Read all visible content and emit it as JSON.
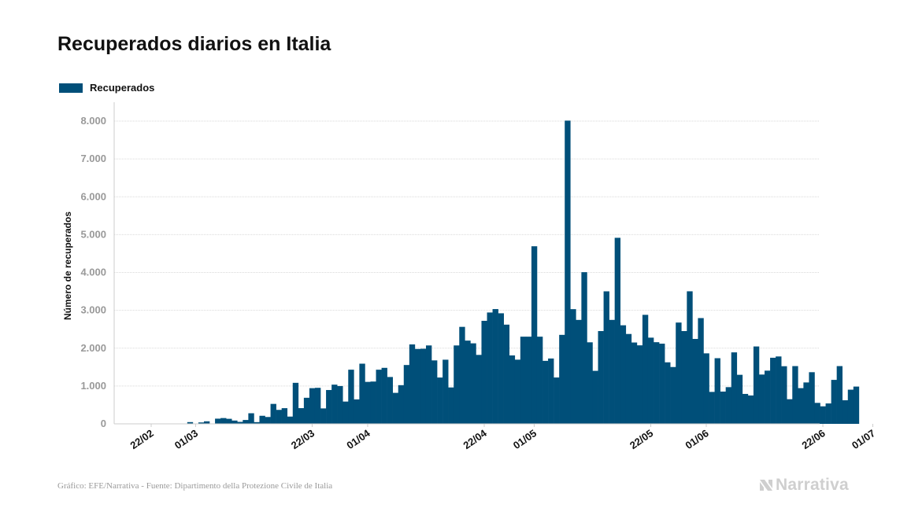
{
  "title": "Recuperados diarios en Italia",
  "source": "Gráfico: EFE/Narrativa - Fuente: Dipartimento della Protezione Civile de Italia",
  "brand": {
    "name": "Narrativa",
    "icon": "narrativa-logo-icon"
  },
  "colors": {
    "bar": "#004f79",
    "grid": "#d9d9d9",
    "tick_text": "#999999",
    "brand": "#cfcfcf"
  },
  "chart_data": {
    "type": "bar",
    "title": "Recuperados diarios en Italia",
    "ylabel": "Número de recuperados",
    "xlabel": "",
    "legend": {
      "position": "top-left",
      "entries": [
        "Recuperados"
      ]
    },
    "grid": true,
    "ylim": [
      0,
      8500
    ],
    "yticks": [
      0,
      1000,
      2000,
      3000,
      4000,
      5000,
      6000,
      7000,
      8000
    ],
    "ytick_labels": [
      "0",
      "1.000",
      "2.000",
      "3.000",
      "4.000",
      "5.000",
      "6.000",
      "7.000",
      "8.000"
    ],
    "x_start": "2020-02-22",
    "x_end": "2020-06-26",
    "xticks": [
      "22/02",
      "01/03",
      "22/03",
      "01/04",
      "22/04",
      "01/05",
      "22/05",
      "01/06",
      "22/06",
      "01/07"
    ],
    "xtick_dates": [
      "2020-02-22",
      "2020-03-01",
      "2020-03-22",
      "2020-04-01",
      "2020-04-22",
      "2020-05-01",
      "2020-05-22",
      "2020-06-01",
      "2020-06-22",
      "2020-07-01"
    ],
    "series": [
      {
        "name": "Recuperados",
        "color": "#004f79",
        "values": [
          0,
          0,
          0,
          0,
          0,
          0,
          0,
          46,
          0,
          37,
          67,
          10,
          137,
          153,
          133,
          87,
          52,
          102,
          280,
          45,
          213,
          181,
          527,
          369,
          414,
          192,
          1084,
          415,
          689,
          943,
          952,
          408,
          894,
          1036,
          999,
          589,
          1431,
          646,
          1590,
          1109,
          1118,
          1431,
          1480,
          1238,
          819,
          1022,
          1555,
          2099,
          1979,
          1985,
          2072,
          1677,
          1224,
          1695,
          962,
          2072,
          2563,
          2200,
          2128,
          1822,
          2723,
          2943,
          3033,
          2922,
          2622,
          1808,
          1696,
          2304,
          2304,
          4693,
          2304,
          1665,
          1727,
          1225,
          2352,
          8014,
          3031,
          2747,
          4008,
          2155,
          1401,
          2452,
          3502,
          2747,
          4917,
          2605,
          2375,
          2150,
          2075,
          2881,
          2278,
          2158,
          2119,
          1626,
          1502,
          2677,
          2452,
          3503,
          2244,
          2795,
          1863,
          844,
          1735,
          853,
          970,
          1889,
          1296,
          791,
          750,
          2045,
          1303,
          1406,
          1747,
          1781,
          1523,
          651,
          1526,
          944,
          1094,
          1365,
          554,
          463,
          539,
          1162,
          1526,
          623,
          903,
          985
        ]
      }
    ]
  }
}
